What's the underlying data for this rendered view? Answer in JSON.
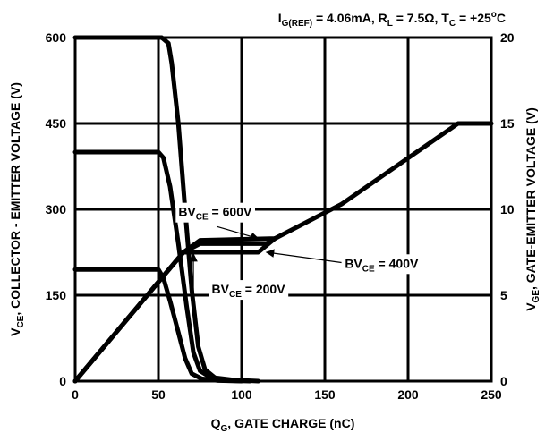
{
  "chart_data": {
    "type": "line",
    "conditions": {
      "i_main": "I",
      "i_sub": "G(REF)",
      "i_val": " = 4.06mA, ",
      "r_main": "R",
      "r_sub": "L",
      "r_val": " = 7.5Ω, ",
      "t_main": "T",
      "t_sub": "C",
      "t_val1": " = +25",
      "t_sup": "o",
      "t_val2": "C"
    },
    "xlabel": {
      "main": "Q",
      "sub": "G",
      "rest": ", GATE CHARGE (nC)"
    },
    "ylabel_left": {
      "main": "V",
      "sub": "CE",
      "rest": ", COLLECTOR - EMITTER  VOLTAGE (V)"
    },
    "ylabel_right": {
      "main": "V",
      "sub": "GE",
      "rest": ",  GATE-EMITTER VOLTAGE (V)"
    },
    "xlim": [
      0,
      250
    ],
    "ylim_left": [
      0,
      600
    ],
    "ylim_right": [
      0,
      20
    ],
    "xticks": [
      0,
      50,
      100,
      150,
      200,
      250
    ],
    "yticks_left": [
      0,
      150,
      300,
      450,
      600
    ],
    "yticks_right": [
      0,
      5,
      10,
      15,
      20
    ],
    "grid": true,
    "series": [
      {
        "axis": "left",
        "points": [
          [
            0,
            600
          ],
          [
            52,
            600
          ],
          [
            56,
            590
          ],
          [
            58,
            555
          ],
          [
            62,
            450
          ],
          [
            66,
            300
          ],
          [
            70,
            160
          ],
          [
            74,
            60
          ],
          [
            78,
            20
          ],
          [
            84,
            6
          ],
          [
            95,
            2
          ],
          [
            110,
            0
          ]
        ]
      },
      {
        "axis": "left",
        "points": [
          [
            0,
            400
          ],
          [
            50,
            400
          ],
          [
            53,
            390
          ],
          [
            57,
            340
          ],
          [
            62,
            240
          ],
          [
            67,
            130
          ],
          [
            71,
            50
          ],
          [
            75,
            18
          ],
          [
            82,
            5
          ],
          [
            92,
            1
          ],
          [
            105,
            0
          ]
        ]
      },
      {
        "axis": "left",
        "points": [
          [
            0,
            195
          ],
          [
            50,
            195
          ],
          [
            53,
            180
          ],
          [
            57,
            140
          ],
          [
            62,
            85
          ],
          [
            66,
            40
          ],
          [
            70,
            13
          ],
          [
            76,
            4
          ],
          [
            86,
            1
          ],
          [
            100,
            0
          ]
        ]
      },
      {
        "axis": "right",
        "points": [
          [
            0,
            0
          ],
          [
            65,
            7.5
          ],
          [
            75,
            8.2
          ],
          [
            120,
            8.3
          ],
          [
            160,
            10.3
          ],
          [
            230,
            15
          ],
          [
            250,
            15
          ]
        ]
      },
      {
        "axis": "right",
        "points": [
          [
            0,
            0
          ],
          [
            65,
            7.5
          ],
          [
            75,
            8.0
          ],
          [
            115,
            8.0
          ],
          [
            120,
            8.3
          ]
        ]
      },
      {
        "axis": "right",
        "points": [
          [
            0,
            0
          ],
          [
            65,
            7.5
          ],
          [
            75,
            7.5
          ],
          [
            110,
            7.5
          ],
          [
            120,
            8.3
          ]
        ]
      }
    ],
    "annotations": [
      {
        "main": "BV",
        "sub": "CE",
        "rest": " = 600V",
        "x": 62,
        "y": 9.6,
        "anchor": "start",
        "arrow_from": [
          85,
          9.0
        ],
        "arrow_to": [
          110,
          8.3
        ]
      },
      {
        "main": "BV",
        "sub": "CE",
        "rest": " = 400V",
        "x": 162,
        "y": 6.6,
        "anchor": "start",
        "arrow_from": [
          160,
          6.9
        ],
        "arrow_to": [
          115,
          7.5
        ]
      },
      {
        "main": "BV",
        "sub": "CE",
        "rest": " = 200V",
        "x": 82,
        "y": 5.1,
        "anchor": "start",
        "arrow_from": [
          71,
          4.7
        ],
        "arrow_to": [
          71,
          7.4
        ]
      }
    ]
  }
}
